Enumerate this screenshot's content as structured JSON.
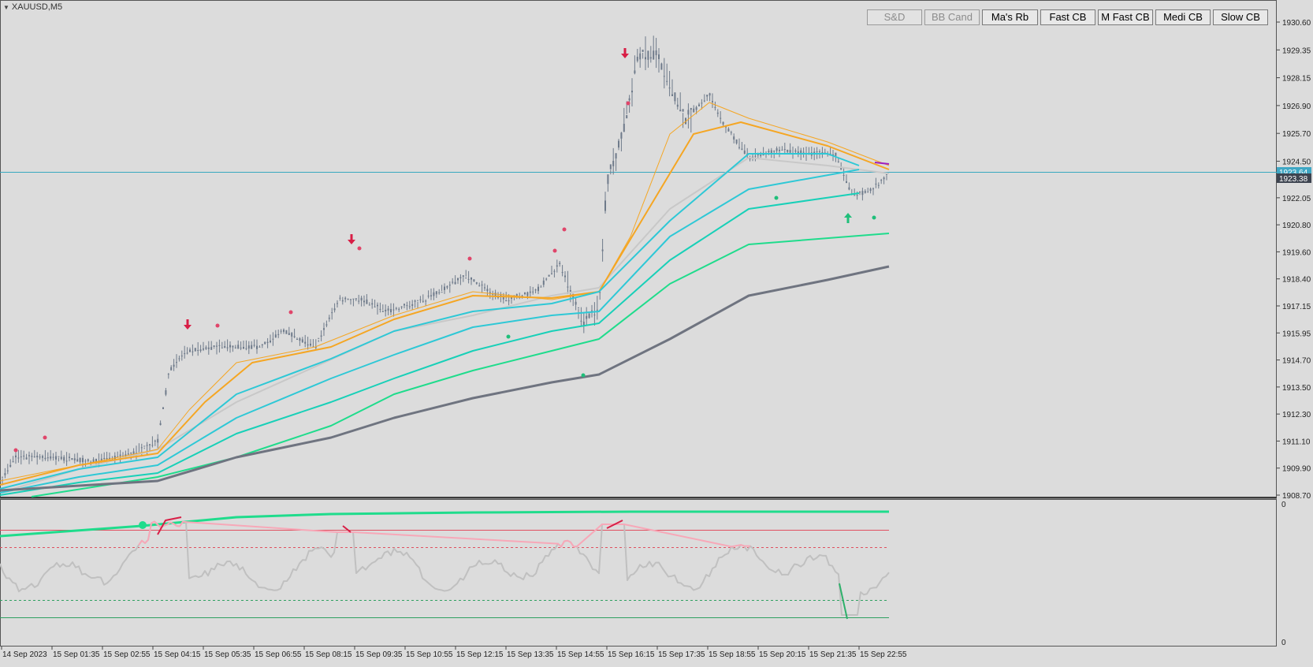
{
  "symbol": "XAUUSD,M5",
  "buttons": [
    {
      "label": "S&D",
      "enabled": false
    },
    {
      "label": "BB Cand",
      "enabled": false
    },
    {
      "label": "Ma's Rb",
      "enabled": true
    },
    {
      "label": "Fast CB",
      "enabled": true
    },
    {
      "label": "M Fast CB",
      "enabled": true
    },
    {
      "label": "Medi CB",
      "enabled": true
    },
    {
      "label": "Slow CB",
      "enabled": true
    }
  ],
  "price_axis": [
    "1930.60",
    "1929.35",
    "1928.15",
    "1926.90",
    "1925.70",
    "1924.50",
    "1922.05",
    "1920.80",
    "1919.60",
    "1918.40",
    "1917.15",
    "1915.95",
    "1914.70",
    "1913.50",
    "1912.30",
    "1911.10",
    "1909.90",
    "1908.70"
  ],
  "price_labels": {
    "bid": "1923.64",
    "last": "1923.38"
  },
  "time_axis": [
    "14 Sep 2023",
    "15 Sep 01:35",
    "15 Sep 02:55",
    "15 Sep 04:15",
    "15 Sep 05:35",
    "15 Sep 06:55",
    "15 Sep 08:15",
    "15 Sep 09:35",
    "15 Sep 10:55",
    "15 Sep 12:15",
    "15 Sep 13:35",
    "15 Sep 14:55",
    "15 Sep 16:15",
    "15 Sep 17:35",
    "15 Sep 18:55",
    "15 Sep 20:15",
    "15 Sep 21:35",
    "15 Sep 22:55"
  ],
  "subwindow_axis": {
    "top": "0",
    "bottom": "0"
  },
  "colors": {
    "bg": "#dcdcdc",
    "candle": "#6e7a8a",
    "orange": "#f5a623",
    "cyan": "#2ec8d6",
    "green": "#1fdc8c",
    "gray": "#6f7480",
    "red": "#d81e46",
    "pink": "#f7a8b8"
  }
}
